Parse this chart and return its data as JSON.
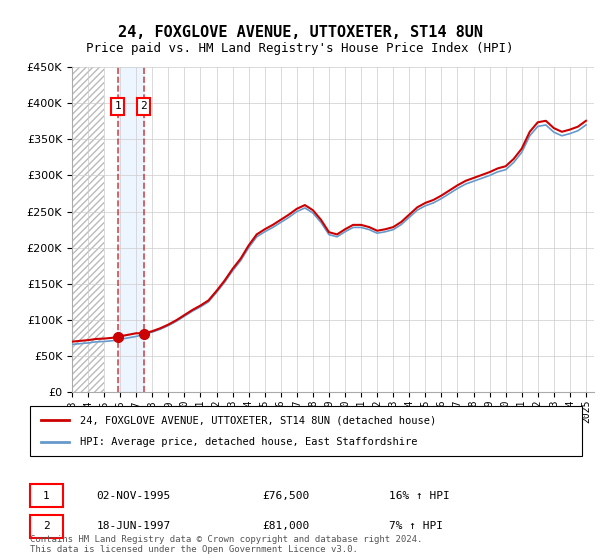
{
  "title": "24, FOXGLOVE AVENUE, UTTOXETER, ST14 8UN",
  "subtitle": "Price paid vs. HM Land Registry's House Price Index (HPI)",
  "legend_line1": "24, FOXGLOVE AVENUE, UTTOXETER, ST14 8UN (detached house)",
  "legend_line2": "HPI: Average price, detached house, East Staffordshire",
  "table_row1_num": "1",
  "table_row1_date": "02-NOV-1995",
  "table_row1_price": "£76,500",
  "table_row1_hpi": "16% ↑ HPI",
  "table_row2_num": "2",
  "table_row2_date": "18-JUN-1997",
  "table_row2_price": "£81,000",
  "table_row2_hpi": "7% ↑ HPI",
  "footnote": "Contains HM Land Registry data © Crown copyright and database right 2024.\nThis data is licensed under the Open Government Licence v3.0.",
  "sale1_year": 1995.84,
  "sale1_price": 76500,
  "sale2_year": 1997.46,
  "sale2_price": 81000,
  "hatch_end_year": 1995.0,
  "ylim_min": 0,
  "ylim_max": 450000,
  "xlim_min": 1993.0,
  "xlim_max": 2025.5,
  "price_color": "#cc0000",
  "hpi_color": "#6699cc",
  "hatch_color": "#cccccc",
  "sale_dot_color": "#cc0000",
  "background_color": "#ffffff",
  "grid_color": "#cccccc"
}
